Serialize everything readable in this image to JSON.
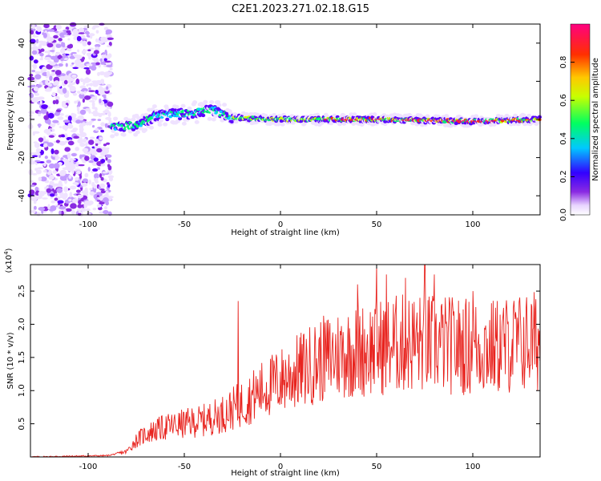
{
  "title": "C2E1.2023.271.02.18.G15",
  "colors": {
    "snr_line": "#e8231e",
    "axis": "#000000",
    "background": "#ffffff"
  },
  "chart_data": [
    {
      "type": "heatmap",
      "xlabel": "Height of straight line (km)",
      "ylabel": "Frequency (Hz)",
      "xlim": [
        -130,
        135
      ],
      "ylim": [
        -50,
        50
      ],
      "xticks": [
        -100,
        -50,
        0,
        50,
        100
      ],
      "yticks": [
        -40,
        -20,
        0,
        20,
        40
      ],
      "colorbar": {
        "label": "Normalized spectral amplitude",
        "range": [
          0,
          1
        ],
        "ticks": [
          0.0,
          0.2,
          0.4,
          0.6,
          0.8
        ],
        "colormap": [
          "#ffffff",
          "#7f00ff",
          "#0000ff",
          "#00ffff",
          "#00ff00",
          "#ffff00",
          "#ff7f00",
          "#ff0000",
          "#ff0080"
        ]
      },
      "description_points": {
        "noise_region_x": [
          -130,
          -88
        ],
        "ridge": [
          {
            "x": -88,
            "y": -4
          },
          {
            "x": -75,
            "y": -3
          },
          {
            "x": -65,
            "y": 2
          },
          {
            "x": -50,
            "y": 3
          },
          {
            "x": -35,
            "y": 5
          },
          {
            "x": -25,
            "y": 1
          },
          {
            "x": 0,
            "y": 0
          },
          {
            "x": 50,
            "y": 0
          },
          {
            "x": 100,
            "y": -1
          },
          {
            "x": 135,
            "y": 0
          }
        ]
      }
    },
    {
      "type": "line",
      "xlabel": "Height of straight line (km)",
      "ylabel": "SNR (10 * v/v)",
      "yexponent": "(x10",
      "yexponent_power": "4",
      "yexponent_close": ")",
      "xlim": [
        -130,
        135
      ],
      "ylim": [
        0,
        2.9
      ],
      "xticks": [
        -100,
        -50,
        0,
        50,
        100
      ],
      "yticks": [
        0.5,
        1.0,
        1.5,
        2.0,
        2.5
      ],
      "series": [
        {
          "envelope_x": [
            -130,
            -90,
            -80,
            -75,
            -70,
            -60,
            -50,
            -40,
            -30,
            -20,
            -10,
            0,
            10,
            20,
            30,
            40,
            50,
            60,
            70,
            80,
            90,
            100,
            110,
            120,
            135
          ],
          "envelope_y": [
            0.0,
            0.02,
            0.08,
            0.25,
            0.35,
            0.45,
            0.5,
            0.55,
            0.65,
            0.8,
            1.0,
            1.15,
            1.3,
            1.45,
            1.55,
            1.6,
            1.65,
            1.7,
            1.72,
            1.7,
            1.68,
            1.66,
            1.65,
            1.7,
            1.75
          ],
          "spike_x": [
            -22,
            40,
            50,
            55,
            65,
            75,
            80,
            100
          ],
          "spike_y": [
            2.35,
            2.6,
            2.9,
            2.75,
            2.7,
            2.9,
            2.75,
            2.5
          ]
        }
      ]
    }
  ]
}
